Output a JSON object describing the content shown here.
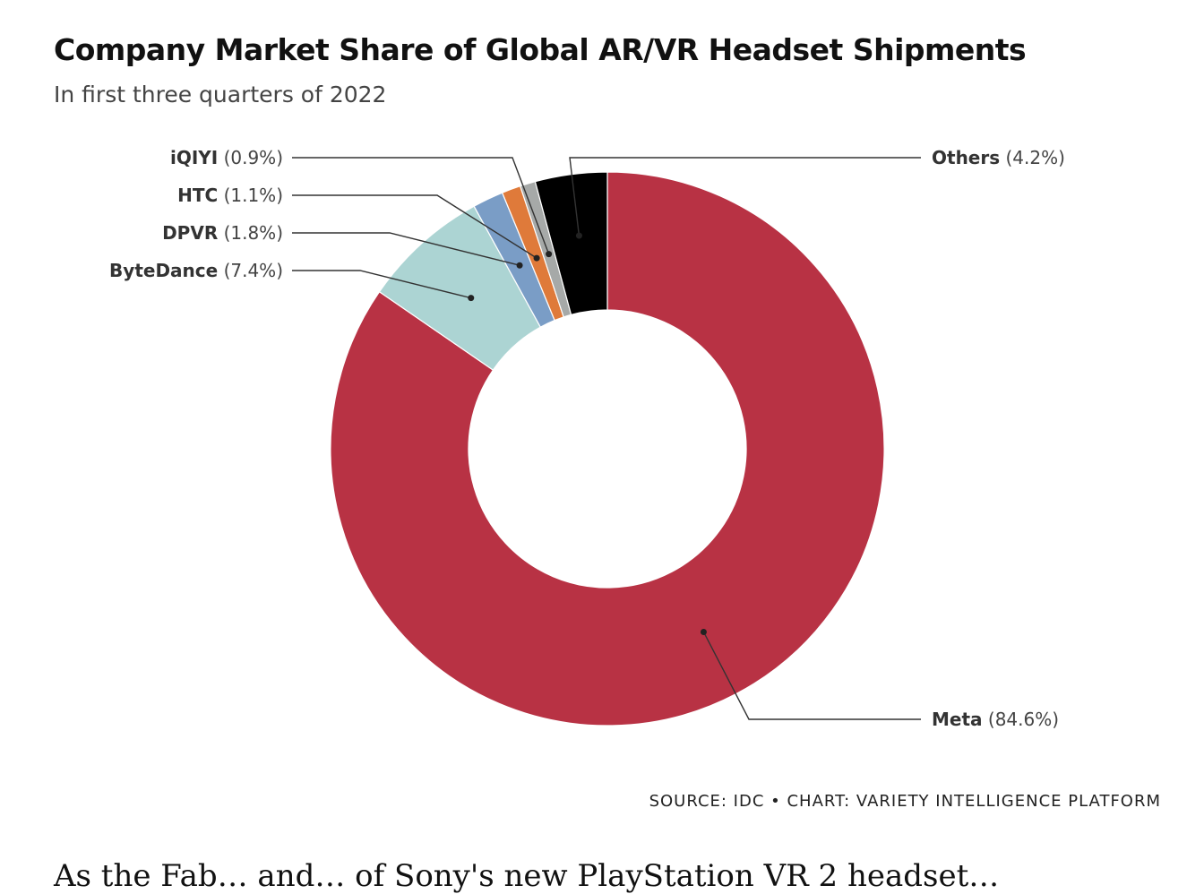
{
  "header": {
    "title": "Company Market Share of Global AR/VR Headset Shipments",
    "subtitle": "In first three quarters of 2022"
  },
  "footer": {
    "source": "SOURCE: IDC • CHART: VARIETY INTELLIGENCE PLATFORM"
  },
  "article": {
    "partial_line": "As the Fab… and… of Sony's new PlayStation VR 2 headset…"
  },
  "chart_data": {
    "type": "pie",
    "variant": "donut",
    "title": "Company Market Share of Global AR/VR Headset Shipments",
    "subtitle": "In first three quarters of 2022",
    "unit": "%",
    "slices": [
      {
        "name": "Meta",
        "value": 84.6,
        "label": "(84.6%)",
        "color": "#b83244"
      },
      {
        "name": "ByteDance",
        "value": 7.4,
        "label": "(7.4%)",
        "color": "#acd4d3"
      },
      {
        "name": "DPVR",
        "value": 1.8,
        "label": "(1.8%)",
        "color": "#7a9dc6"
      },
      {
        "name": "HTC",
        "value": 1.1,
        "label": "(1.1%)",
        "color": "#df7a3a"
      },
      {
        "name": "iQIYI",
        "value": 0.9,
        "label": "(0.9%)",
        "color": "#a6a9a8"
      },
      {
        "name": "Others",
        "value": 4.2,
        "label": "(4.2%)",
        "color": "#000000"
      }
    ]
  }
}
